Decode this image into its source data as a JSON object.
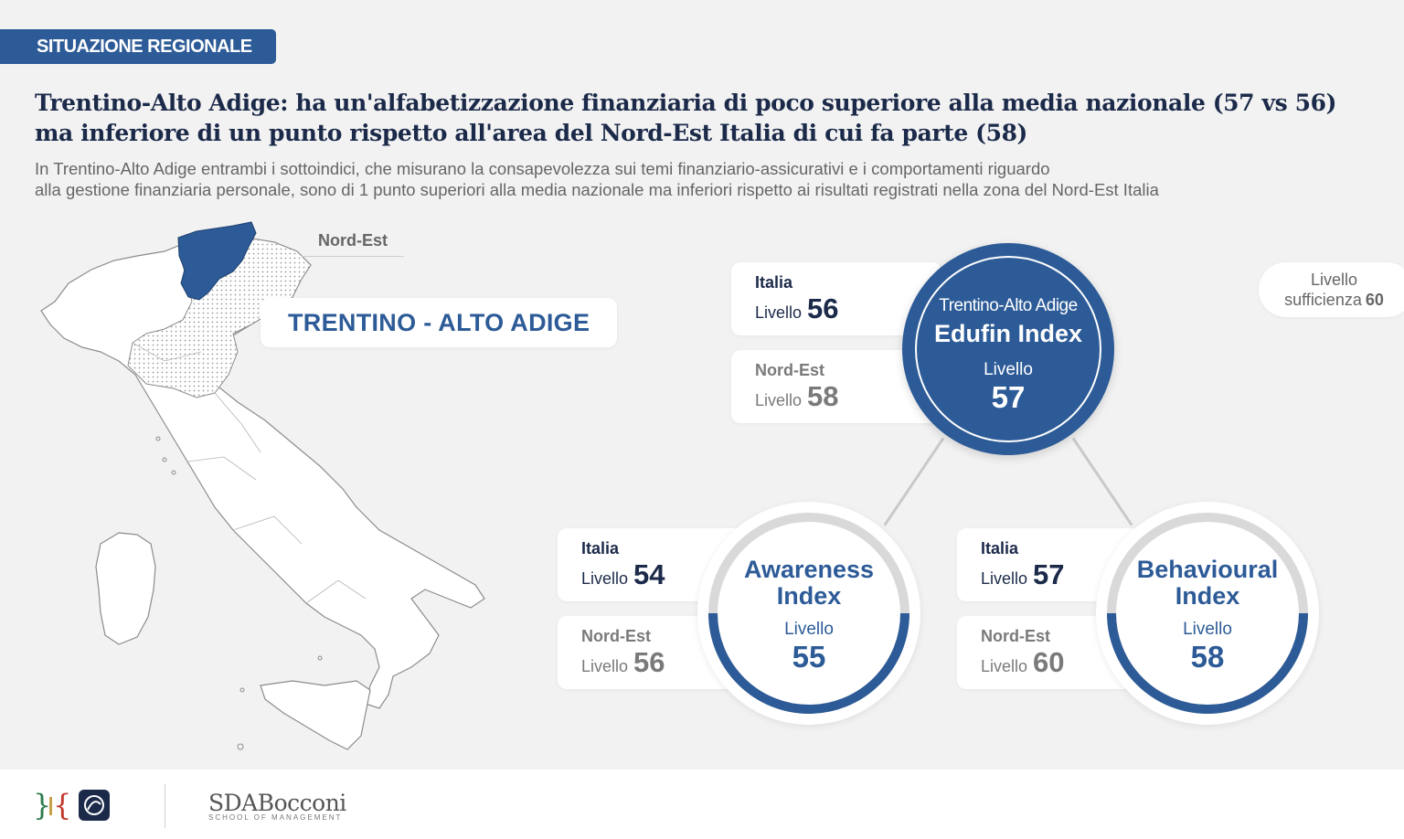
{
  "section_tag": "SITUAZIONE REGIONALE",
  "headline": "Trentino-Alto Adige: ha un'alfabetizzazione finanziaria di poco superiore alla media nazionale (57 vs 56) ma inferiore di un punto rispetto all'area del Nord-Est Italia di cui fa parte (58)",
  "subhead_line1": "In Trentino-Alto Adige entrambi i sottoindici, che misurano la consapevolezza sui temi finanziario-assicurativi e i comportamenti riguardo",
  "subhead_line2": "alla gestione finanziaria personale, sono di 1 punto superiori alla media nazionale ma inferiori rispetto ai risultati registrati nella zona del Nord-Est Italia",
  "map": {
    "area_label": "Nord-Est",
    "region_name": "TRENTINO - ALTO ADIGE",
    "highlight_color": "#2d5b97"
  },
  "main_index": {
    "region": "Trentino-Alto Adige",
    "name": "Edufin Index",
    "level_label": "Livello",
    "value": "57",
    "italia": {
      "label": "Italia",
      "level_label": "Livello",
      "value": "56"
    },
    "nordest": {
      "label": "Nord-Est",
      "level_label": "Livello",
      "value": "58"
    }
  },
  "awareness": {
    "name_line1": "Awareness",
    "name_line2": "Index",
    "level_label": "Livello",
    "value": "55",
    "italia": {
      "label": "Italia",
      "level_label": "Livello",
      "value": "54"
    },
    "nordest": {
      "label": "Nord-Est",
      "level_label": "Livello",
      "value": "56"
    }
  },
  "behavioural": {
    "name_line1": "Behavioural",
    "name_line2": "Index",
    "level_label": "Livello",
    "value": "58",
    "italia": {
      "label": "Italia",
      "level_label": "Livello",
      "value": "57"
    },
    "nordest": {
      "label": "Nord-Est",
      "level_label": "Livello",
      "value": "60"
    }
  },
  "sufficiency": {
    "line1": "Livello",
    "line2": "sufficienza",
    "value": "60"
  },
  "footer": {
    "logo2_main": "SDABocconi",
    "logo2_sub": "SCHOOL OF MANAGEMENT"
  },
  "colors": {
    "brand_blue": "#2d5b97",
    "ring_grey": "#d9d9d9"
  }
}
